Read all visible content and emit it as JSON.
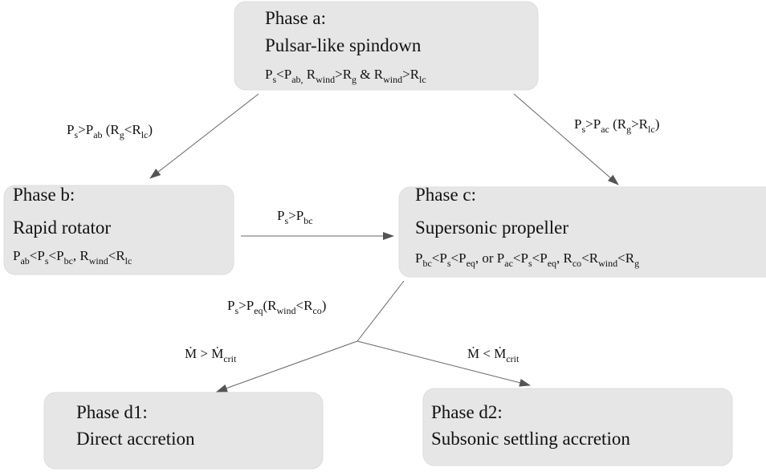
{
  "nodes": [
    {
      "title": "Phase a:",
      "subtitle": "Pulsar-like spindown",
      "condition": [
        {
          "base": "P",
          "sub": "s"
        },
        {
          "base": "<P",
          "sub": "ab,"
        },
        {
          "base": " R",
          "sub": "wind"
        },
        {
          "base": ">R",
          "sub": "g"
        },
        {
          "base": " & R",
          "sub": "wind"
        },
        {
          "base": ">R",
          "sub": "lc"
        }
      ]
    },
    {
      "title": "Phase b:",
      "subtitle": "Rapid rotator",
      "condition": [
        {
          "base": "P",
          "sub": "ab"
        },
        {
          "base": "<P",
          "sub": "s"
        },
        {
          "base": "<P",
          "sub": "bc"
        },
        {
          "base": ", R",
          "sub": "wind"
        },
        {
          "base": "<R",
          "sub": "lc"
        }
      ]
    },
    {
      "title": "Phase c:",
      "subtitle": "Supersonic propeller",
      "condition": [
        {
          "base": "P",
          "sub": "bc"
        },
        {
          "base": "<P",
          "sub": "s"
        },
        {
          "base": "<P",
          "sub": "eq"
        },
        {
          "base": ", or P",
          "sub": "ac"
        },
        {
          "base": "<P",
          "sub": "s"
        },
        {
          "base": "<P",
          "sub": "eq"
        },
        {
          "base": ", R",
          "sub": "co"
        },
        {
          "base": "<R",
          "sub": "wind"
        },
        {
          "base": "<R",
          "sub": "g"
        }
      ]
    },
    {
      "title": "Phase d1:",
      "subtitle": "Direct accretion"
    },
    {
      "title": "Phase d2:",
      "subtitle": "Subsonic settling accretion"
    }
  ],
  "edges": [
    {
      "label": [
        {
          "base": "P",
          "sub": "s"
        },
        {
          "base": ">P",
          "sub": "ab"
        },
        {
          "base": " (R",
          "sub": "g"
        },
        {
          "base": "<R",
          "sub": "lc"
        },
        {
          "base": ")"
        }
      ]
    },
    {
      "label": [
        {
          "base": "P",
          "sub": "s"
        },
        {
          "base": ">P",
          "sub": "ac"
        },
        {
          "base": " (R",
          "sub": "g"
        },
        {
          "base": ">R",
          "sub": "lc"
        },
        {
          "base": ")"
        }
      ]
    },
    {
      "label": [
        {
          "base": "P",
          "sub": "s"
        },
        {
          "base": ">P",
          "sub": "bc"
        }
      ]
    },
    {
      "label": [
        {
          "base": "P",
          "sub": "s"
        },
        {
          "base": ">P",
          "sub": "eq"
        },
        {
          "base": "(R",
          "sub": "wind"
        },
        {
          "base": "<R",
          "sub": "co"
        },
        {
          "base": ")"
        }
      ]
    },
    {
      "label": [
        {
          "base": "Ṁ > Ṁ",
          "sub": "crit"
        }
      ]
    },
    {
      "label": [
        {
          "base": "Ṁ < Ṁ",
          "sub": "crit"
        }
      ]
    }
  ]
}
